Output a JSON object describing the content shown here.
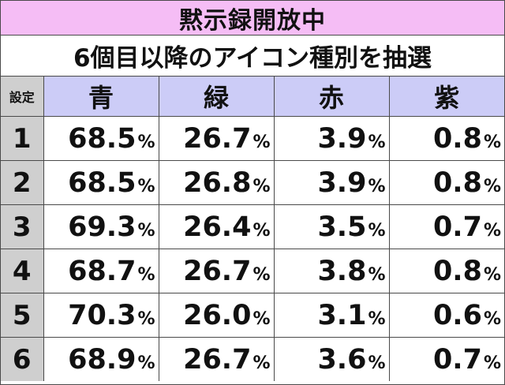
{
  "title": "黙示録開放中",
  "subtitle": "6個目以降のアイコン種別を抽選",
  "table": {
    "setting_header": "設定",
    "columns": [
      "青",
      "緑",
      "赤",
      "紫"
    ],
    "rows": [
      {
        "setting": "1",
        "values": [
          "68.5",
          "26.7",
          "3.9",
          "0.8"
        ]
      },
      {
        "setting": "2",
        "values": [
          "68.5",
          "26.8",
          "3.9",
          "0.8"
        ]
      },
      {
        "setting": "3",
        "values": [
          "69.3",
          "26.4",
          "3.5",
          "0.7"
        ]
      },
      {
        "setting": "4",
        "values": [
          "68.7",
          "26.7",
          "3.8",
          "0.8"
        ]
      },
      {
        "setting": "5",
        "values": [
          "70.3",
          "26.0",
          "3.1",
          "0.6"
        ]
      },
      {
        "setting": "6",
        "values": [
          "68.9",
          "26.7",
          "3.6",
          "0.7"
        ]
      }
    ],
    "unit": "%"
  },
  "colors": {
    "title_bg": "#f5bdf5",
    "header_bg": "#ccccf7",
    "setting_bg": "#cfcfcf",
    "border": "#4a4a4a"
  }
}
